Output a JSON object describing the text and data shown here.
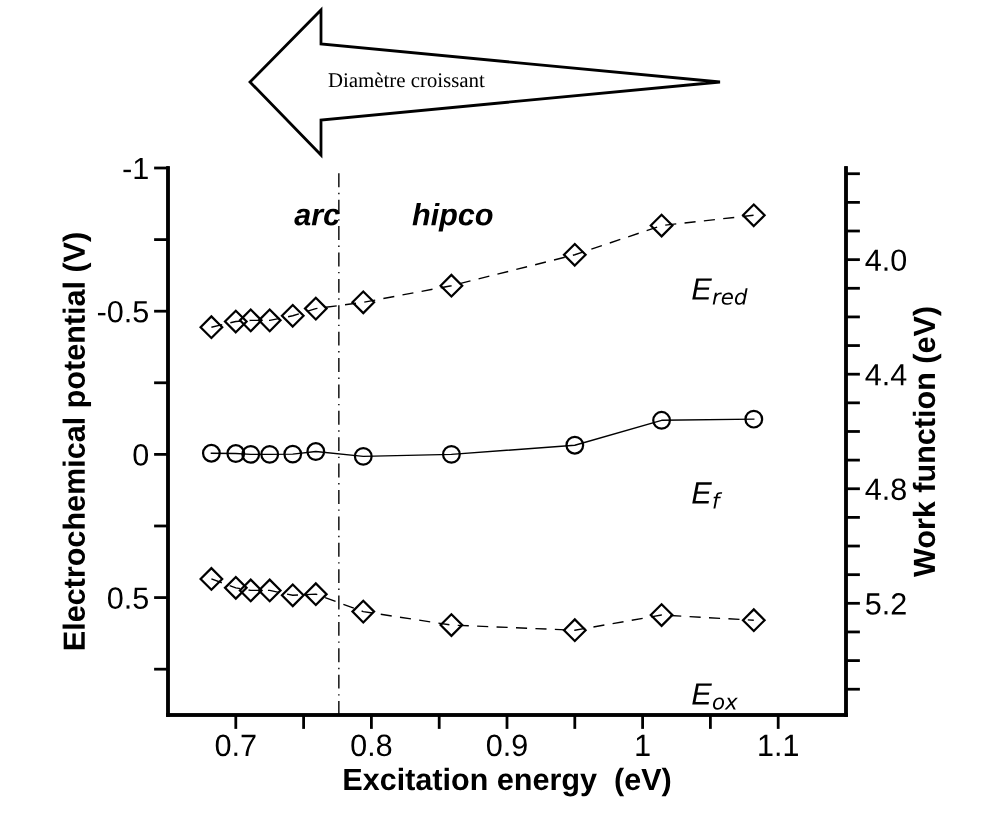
{
  "chart_data": {
    "type": "line",
    "xlabel": "Excitation energy  (eV)",
    "ylabel": "Electrochemical potential (V)",
    "y2label": "Work function (eV)",
    "xlim": [
      0.65,
      1.15
    ],
    "xticks": [
      0.7,
      {
        "value": 0.75,
        "label": null
      },
      0.8,
      {
        "value": 0.85,
        "label": null
      },
      0.9,
      {
        "value": 0.95,
        "label": null
      },
      {
        "value": 1,
        "label": "1"
      },
      {
        "value": 1.05,
        "label": null
      },
      1.1
    ],
    "ylim": [
      0.91,
      -1
    ],
    "yticks": [
      {
        "value": -1,
        "label": "-1"
      },
      {
        "value": -0.75,
        "label": null
      },
      {
        "value": -0.5,
        "label": "-0.5"
      },
      {
        "value": -0.25,
        "label": null
      },
      0,
      {
        "value": 0.25,
        "label": null
      },
      0.5,
      {
        "value": 0.75,
        "label": null
      }
    ],
    "y2lim": [
      5.59,
      3.68
    ],
    "y2ticks": [
      {
        "value": 3.7,
        "label": null
      },
      {
        "value": 3.8,
        "label": null
      },
      {
        "value": 3.9,
        "label": null
      },
      {
        "value": 4.0,
        "label": "4.0"
      },
      {
        "value": 4.1,
        "label": null
      },
      {
        "value": 4.2,
        "label": null
      },
      {
        "value": 4.3,
        "label": null
      },
      4.4,
      {
        "value": 4.5,
        "label": null
      },
      {
        "value": 4.6,
        "label": null
      },
      {
        "value": 4.7,
        "label": null
      },
      4.8,
      {
        "value": 4.9,
        "label": null
      },
      {
        "value": 5.0,
        "label": null
      },
      {
        "value": 5.1,
        "label": null
      },
      5.2,
      {
        "value": 5.3,
        "label": null
      },
      {
        "value": 5.4,
        "label": null
      },
      {
        "value": 5.5,
        "label": null
      }
    ],
    "x": [
      0.682,
      0.7,
      0.711,
      0.725,
      0.742,
      0.759,
      0.794,
      0.859,
      0.95,
      1.014,
      1.082
    ],
    "series": [
      {
        "name": "E$_{red}$",
        "color": "#000000",
        "marker": "diamond",
        "line_style": "dashed",
        "values": [
          -0.444,
          -0.464,
          -0.468,
          -0.468,
          -0.484,
          -0.509,
          -0.531,
          -0.589,
          -0.697,
          -0.799,
          -0.835
        ]
      },
      {
        "name": "E$_{f}$",
        "color": "#000000",
        "marker": "circle",
        "line_style": "solid",
        "values": [
          -0.004,
          -0.003,
          0,
          0,
          -0.001,
          -0.01,
          0.007,
          0,
          -0.032,
          -0.119,
          -0.123
        ]
      },
      {
        "name": "E$_{ox}$",
        "color": "#000000",
        "marker": "diamond",
        "line_style": "dashed",
        "values": [
          0.435,
          0.466,
          0.475,
          0.475,
          0.492,
          0.488,
          0.549,
          0.596,
          0.614,
          0.561,
          0.579
        ]
      }
    ],
    "ref_lines": [
      {
        "axis": "x",
        "value": 0.776,
        "line_style": "dashdot",
        "color": "#000000"
      }
    ],
    "annotations": [
      "arc",
      "hipco",
      "Diamètre croissant"
    ],
    "grid": false,
    "legend": false
  }
}
